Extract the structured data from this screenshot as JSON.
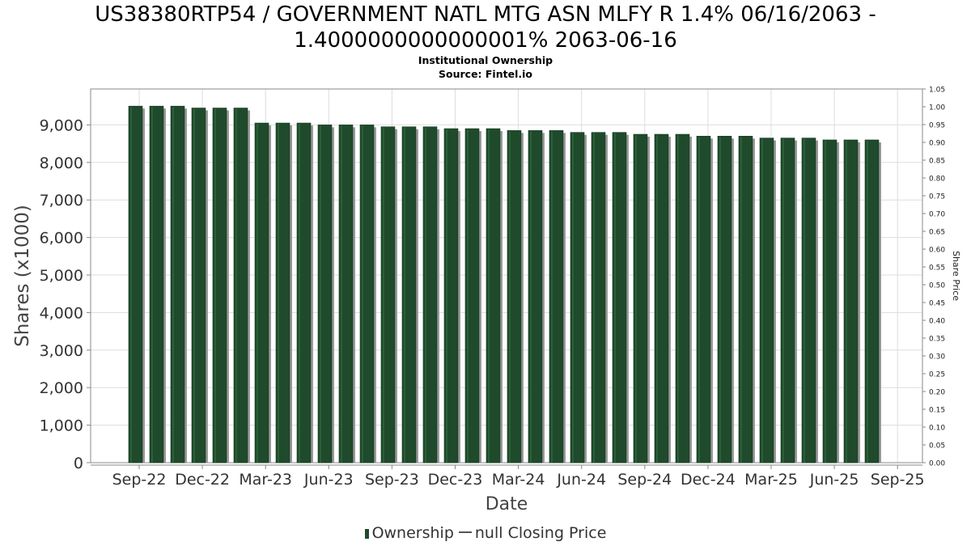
{
  "title_line1": "US38380RTP54 / GOVERNMENT NATL MTG ASN MLFY R 1.4% 06/16/2063 -",
  "title_line2": "1.4000000000000001% 2063-06-16",
  "subtitle1": "Institutional Ownership",
  "subtitle2": "Source: Fintel.io",
  "legend": {
    "ownership": "Ownership",
    "price": "null Closing Price"
  },
  "colors": {
    "bar": "#1f4a2b",
    "bar_shadow": "#9a9a9a",
    "grid": "#dddddd"
  },
  "chart_data": {
    "type": "bar",
    "xlabel": "Date",
    "ylabel": "Shares (x1000)",
    "y2label": "Share Price",
    "ylim": [
      0,
      9800
    ],
    "y2lim": [
      0,
      1.05
    ],
    "grid": true,
    "legend_position": "bottom",
    "x_tick_labels": [
      "Sep-22",
      "Dec-22",
      "Mar-23",
      "Jun-23",
      "Sep-23",
      "Dec-23",
      "Mar-24",
      "Jun-24",
      "Sep-24",
      "Dec-24",
      "Mar-25",
      "Jun-25",
      "Sep-25"
    ],
    "y_tick_labels": [
      "0",
      "1,000",
      "2,000",
      "3,000",
      "4,000",
      "5,000",
      "6,000",
      "7,000",
      "8,000",
      "9,000"
    ],
    "y2_tick_labels": [
      "0.00",
      "0.05",
      "0.10",
      "0.15",
      "0.20",
      "0.25",
      "0.30",
      "0.35",
      "0.40",
      "0.45",
      "0.50",
      "0.55",
      "0.60",
      "0.65",
      "0.70",
      "0.75",
      "0.80",
      "0.85",
      "0.90",
      "0.95",
      "1.00",
      "1.05"
    ],
    "series": [
      {
        "name": "Ownership",
        "values": [
          9500,
          9500,
          9500,
          9450,
          9450,
          9450,
          9050,
          9050,
          9050,
          9000,
          9000,
          9000,
          8950,
          8950,
          8950,
          8900,
          8900,
          8900,
          8850,
          8850,
          8850,
          8800,
          8800,
          8800,
          8750,
          8750,
          8750,
          8700,
          8700,
          8700,
          8650,
          8650,
          8650,
          8600,
          8600,
          8600
        ]
      }
    ]
  }
}
